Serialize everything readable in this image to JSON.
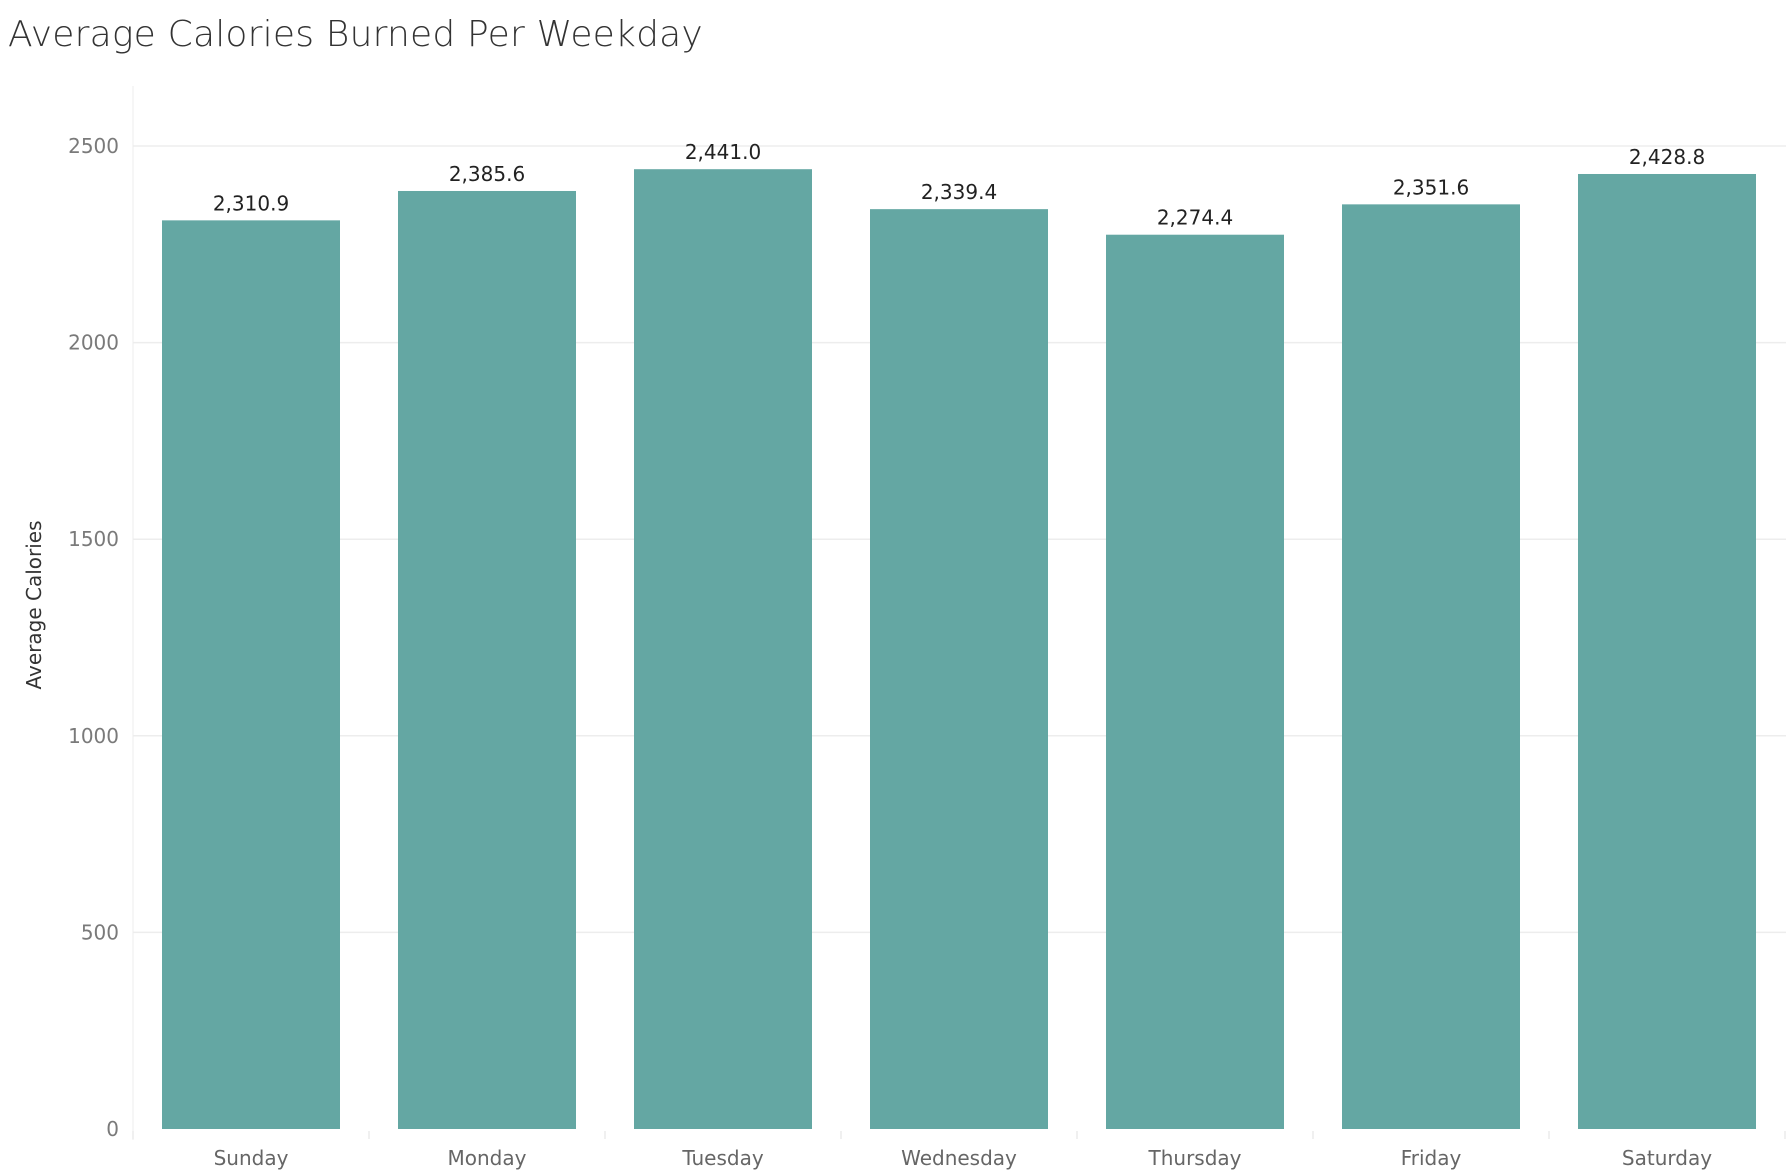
{
  "chart_data": {
    "type": "bar",
    "title": "Average Calories Burned Per Weekday",
    "xlabel": "",
    "ylabel": "Average Calories",
    "categories": [
      "Sunday",
      "Monday",
      "Tuesday",
      "Wednesday",
      "Thursday",
      "Friday",
      "Saturday"
    ],
    "values": [
      2310.9,
      2385.6,
      2441.0,
      2339.4,
      2274.4,
      2351.6,
      2428.8
    ],
    "data_labels": [
      "2,310.9",
      "2,385.6",
      "2,441.0",
      "2,339.4",
      "2,274.4",
      "2,351.6",
      "2,428.8"
    ],
    "yticks": [
      0,
      500,
      1000,
      1500,
      2000,
      2500
    ],
    "ylim": [
      0,
      2600
    ],
    "grid": true,
    "legend": "none",
    "bar_color": "#64a7a3"
  }
}
